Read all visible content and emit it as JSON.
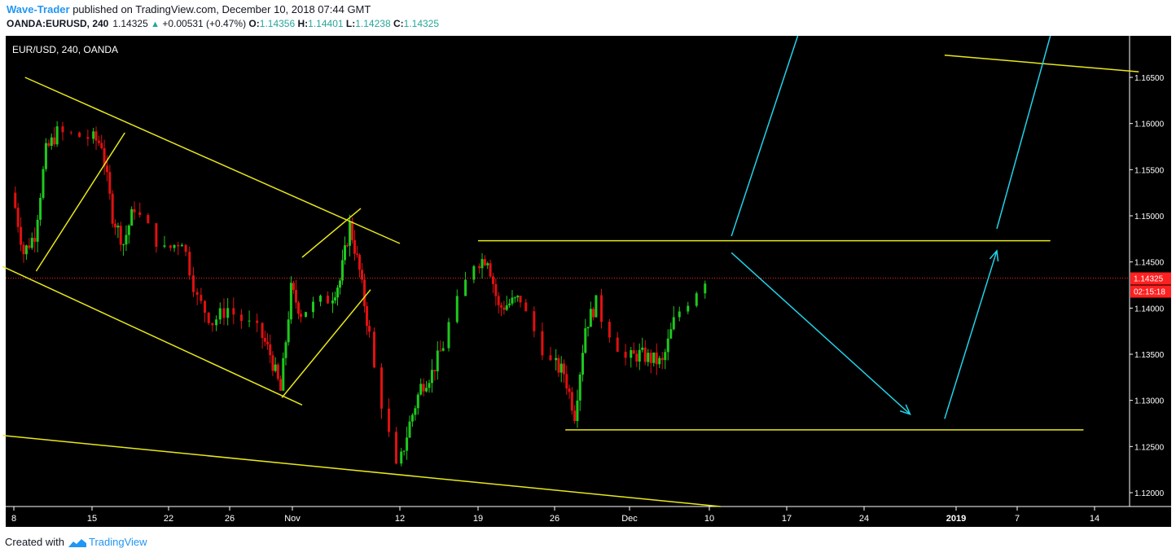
{
  "header": {
    "author": "Wave-Trader",
    "published": "published on TradingView.com, December 10, 2018 07:44 GMT",
    "symbol": "OANDA:EURUSD, 240",
    "last": "1.14325",
    "change_icon": "up-triangle-icon",
    "change": "+0.00531 (+0.47%)",
    "o_label": "O:",
    "o_value": "1.14356",
    "h_label": "H:",
    "h_value": "1.14401",
    "l_label": "L:",
    "l_value": "1.14238",
    "c_label": "C:",
    "c_value": "1.14325"
  },
  "footer": {
    "created_with": "Created with",
    "brand": "TradingView",
    "logo_icon": "tradingview-logo-icon"
  },
  "chart_data": {
    "type": "candlestick",
    "title": "EUR/USD, 240, OANDA",
    "ylim": [
      1.1185,
      1.1695
    ],
    "y_ticks": [
      "1.16500",
      "1.16000",
      "1.15500",
      "1.15000",
      "1.14500",
      "1.14000",
      "1.13500",
      "1.13000",
      "1.12500",
      "1.12000"
    ],
    "x_tick_labels": [
      "8",
      "15",
      "22",
      "26",
      "Nov",
      "12",
      "19",
      "26",
      "Dec",
      "10",
      "17",
      "24",
      "2019",
      "7",
      "14"
    ],
    "x_tick_dates": [
      "2018-10-08",
      "2018-10-15",
      "2018-10-22",
      "2018-10-26",
      "2018-11-01",
      "2018-11-12",
      "2018-11-19",
      "2018-11-26",
      "2018-12-03",
      "2018-12-10",
      "2018-12-17",
      "2018-12-24",
      "2019-01-01",
      "2019-01-07",
      "2019-01-14"
    ],
    "last_price": "1.14325",
    "countdown": "02:15:18",
    "colors": {
      "up": "#1ec81e",
      "down": "#e01010",
      "trendline": "#e8e81a",
      "arrow": "#22d2e8",
      "last_price": "#ff2020",
      "background": "#000000",
      "text": "#ffffff"
    },
    "price_path": [
      [
        "2018-10-08",
        1.1525
      ],
      [
        "2018-10-09",
        1.146
      ],
      [
        "2018-10-10",
        1.148
      ],
      [
        "2018-10-11",
        1.157
      ],
      [
        "2018-10-12",
        1.159
      ],
      [
        "2018-10-15",
        1.1585
      ],
      [
        "2018-10-16",
        1.1578
      ],
      [
        "2018-10-17",
        1.15
      ],
      [
        "2018-10-18",
        1.147
      ],
      [
        "2018-10-19",
        1.151
      ],
      [
        "2018-10-22",
        1.1462
      ],
      [
        "2018-10-23",
        1.1475
      ],
      [
        "2018-10-24",
        1.141
      ],
      [
        "2018-10-25",
        1.1385
      ],
      [
        "2018-10-26",
        1.14
      ],
      [
        "2018-10-29",
        1.1375
      ],
      [
        "2018-10-30",
        1.135
      ],
      [
        "2018-10-31",
        1.131
      ],
      [
        "2018-11-01",
        1.142
      ],
      [
        "2018-11-02",
        1.1395
      ],
      [
        "2018-11-05",
        1.141
      ],
      [
        "2018-11-06",
        1.143
      ],
      [
        "2018-11-07",
        1.149
      ],
      [
        "2018-11-08",
        1.144
      ],
      [
        "2018-11-09",
        1.137
      ],
      [
        "2018-11-12",
        1.1225
      ],
      [
        "2018-11-13",
        1.1275
      ],
      [
        "2018-11-14",
        1.1315
      ],
      [
        "2018-11-15",
        1.133
      ],
      [
        "2018-11-16",
        1.136
      ],
      [
        "2018-11-19",
        1.145
      ],
      [
        "2018-11-20",
        1.1455
      ],
      [
        "2018-11-21",
        1.14
      ],
      [
        "2018-11-22",
        1.1405
      ],
      [
        "2018-11-23",
        1.141
      ],
      [
        "2018-11-26",
        1.134
      ],
      [
        "2018-11-27",
        1.133
      ],
      [
        "2018-11-28",
        1.1285
      ],
      [
        "2018-11-29",
        1.138
      ],
      [
        "2018-11-30",
        1.1405
      ],
      [
        "2018-12-03",
        1.1345
      ],
      [
        "2018-12-04",
        1.135
      ],
      [
        "2018-12-05",
        1.1345
      ],
      [
        "2018-12-06",
        1.134
      ],
      [
        "2018-12-07",
        1.1385
      ],
      [
        "2018-12-10",
        1.14325
      ]
    ],
    "trendlines": [
      {
        "from": [
          "2018-10-09",
          1.165
        ],
        "to": [
          "2018-11-12",
          1.147
        ]
      },
      {
        "from": [
          "2018-10-07",
          1.1445
        ],
        "to": [
          "2018-11-02",
          1.1295
        ]
      },
      {
        "from": [
          "2018-10-07",
          1.1262
        ],
        "to": [
          "2018-12-11",
          1.1185
        ]
      },
      {
        "from": [
          "2018-10-10",
          1.144
        ],
        "to": [
          "2018-10-18",
          1.159
        ]
      },
      {
        "from": [
          "2018-10-31",
          1.1303
        ],
        "to": [
          "2018-11-09",
          1.142
        ]
      },
      {
        "from": [
          "2018-11-02",
          1.1455
        ],
        "to": [
          "2018-11-08",
          1.1508
        ]
      },
      {
        "from": [
          "2018-11-19",
          1.1473
        ],
        "to": [
          "2019-01-10",
          1.1473
        ]
      },
      {
        "from": [
          "2018-11-27",
          1.1268
        ],
        "to": [
          "2019-01-13",
          1.1268
        ]
      },
      {
        "from": [
          "2018-12-31",
          1.1674
        ],
        "to": [
          "2019-01-18",
          1.1656
        ]
      }
    ],
    "arrows": [
      {
        "from": [
          "2018-12-12",
          1.1478
        ],
        "to": [
          "2018-12-18",
          1.1695
        ],
        "head": false
      },
      {
        "from": [
          "2018-12-12",
          1.146
        ],
        "to": [
          "2018-12-28",
          1.1285
        ],
        "head": true
      },
      {
        "from": [
          "2018-12-31",
          1.128
        ],
        "to": [
          "2019-01-05",
          1.1462
        ],
        "head": true
      },
      {
        "from": [
          "2019-01-05",
          1.1486
        ],
        "to": [
          "2019-01-10",
          1.1695
        ],
        "head": false
      }
    ]
  }
}
